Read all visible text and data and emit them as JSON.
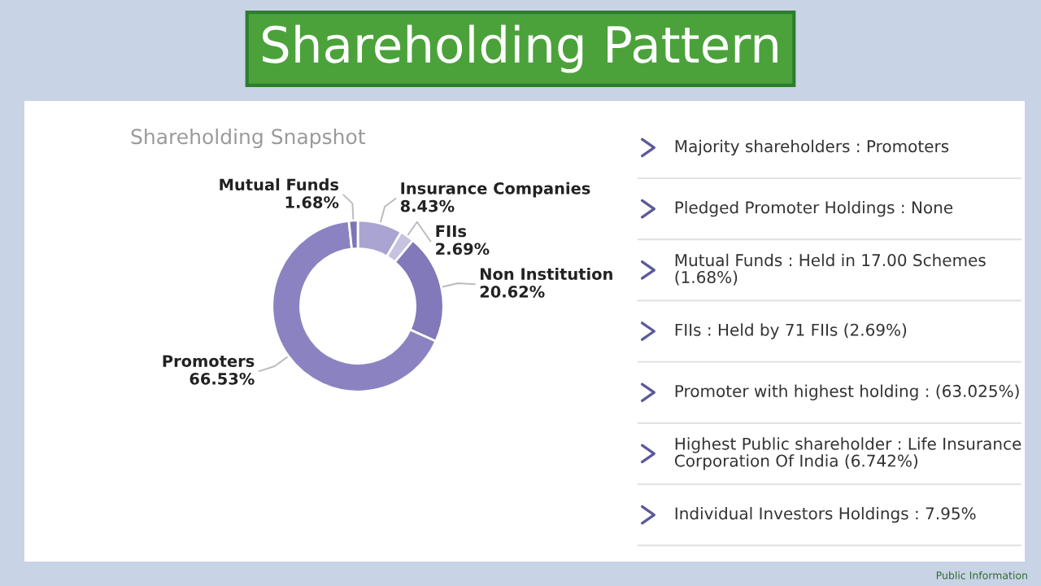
{
  "chart_data": [
    {
      "type": "donut",
      "title": "Shareholding Pattern",
      "subtitle": "Shareholding Snapshot",
      "categories": [
        "Insurance Companies",
        "FIIs",
        "Non Institution",
        "Promoters",
        "Mutual Funds"
      ],
      "values": [
        8.43,
        2.69,
        20.62,
        66.53,
        1.68
      ],
      "value_labels": [
        "8.43%",
        "2.69%",
        "20.62%",
        "66.53%",
        "1.68%"
      ],
      "colors": [
        "#aaa4d2",
        "#c6c2e0",
        "#8179b9",
        "#8b83c1",
        "#7d75b5"
      ]
    },
    {
      "type": "other",
      "annotations": [
        "Majority shareholders : Promoters",
        "Pledged Promoter Holdings : None",
        "Mutual Funds : Held in 17.00 Schemes (1.68%)",
        "FIIs : Held by 71 FIIs (2.69%)",
        "Promoter with highest holding : (63.025%)",
        "Highest Public shareholder : Life Insurance Corporation Of India (6.742%)",
        "Individual Investors Holdings : 7.95%",
        "Public Information"
      ]
    }
  ]
}
